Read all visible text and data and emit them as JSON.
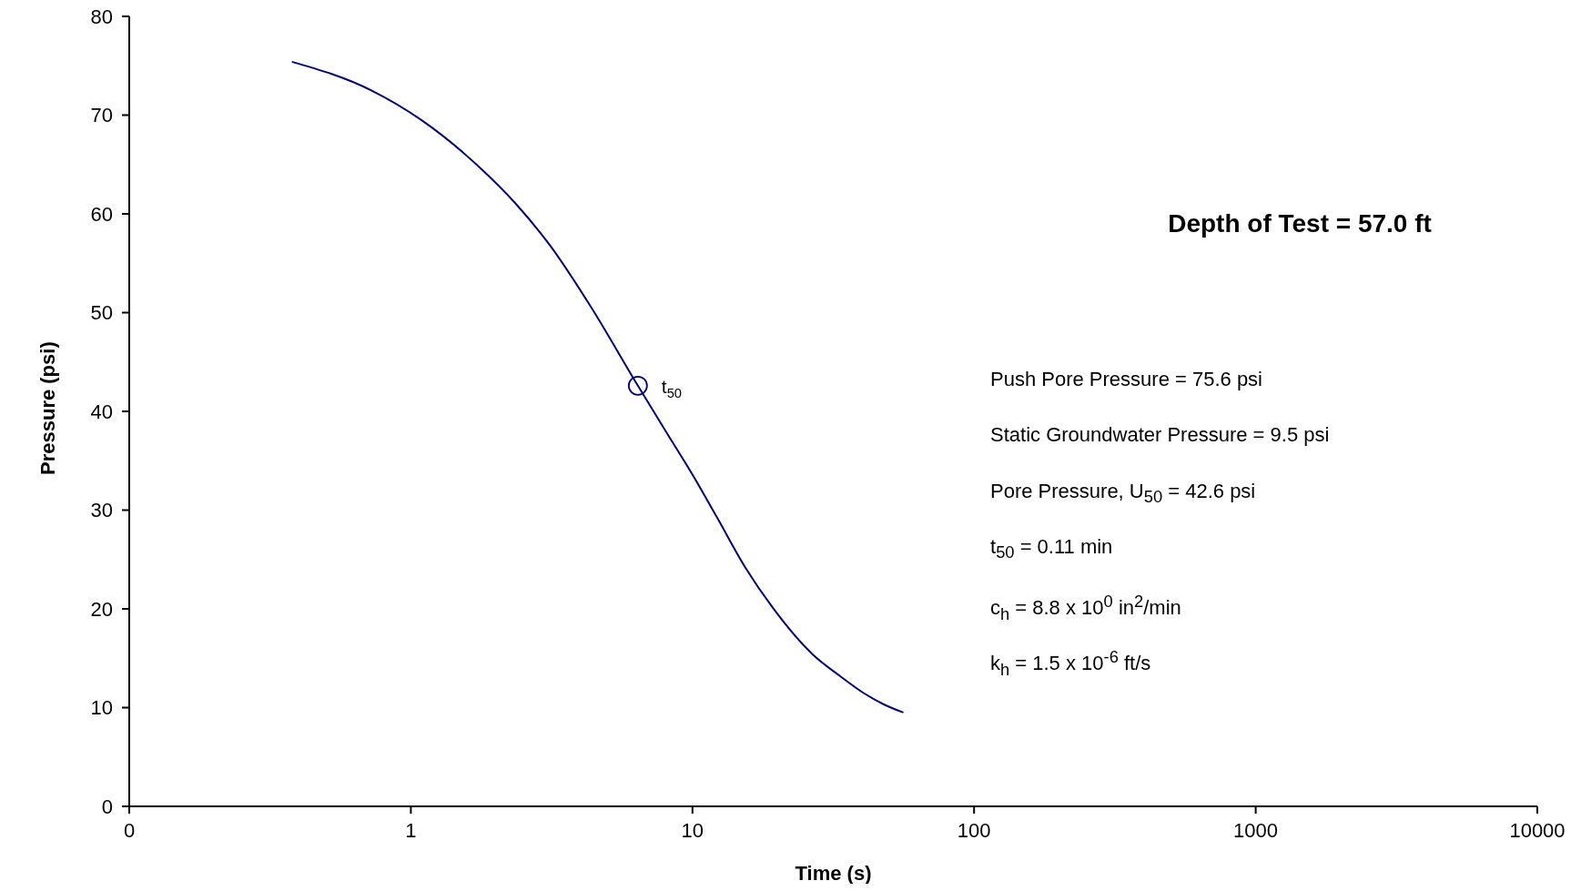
{
  "chart_data": {
    "type": "line",
    "title": "Depth of Test = 57.0 ft",
    "xlabel": "Time (s)",
    "ylabel": "Pressure (psi)",
    "log": "x",
    "grid": false,
    "legend": false,
    "xlim": [
      0.1,
      10000
    ],
    "xticks": [
      {
        "value": 0.1,
        "label": "0"
      },
      1,
      10,
      100,
      1000,
      10000
    ],
    "ylim": [
      0,
      80
    ],
    "yticks": [
      0,
      10,
      20,
      30,
      40,
      50,
      60,
      70,
      80
    ],
    "series": [
      {
        "color": "#000080",
        "marker": "none",
        "x": [
          0.378,
          0.724,
          1.09,
          1.71,
          2.38,
          3.12,
          4.31,
          6.4,
          8.07,
          10,
          12.2,
          15.4,
          19.3,
          26.7,
          33.4,
          40.4,
          48,
          56.1
        ],
        "values": [
          75.4,
          72.5,
          69.5,
          65,
          60.9,
          56.8,
          50.8,
          42.6,
          37.9,
          33.6,
          29.3,
          24.2,
          20.1,
          15.4,
          13.2,
          11.5,
          10.3,
          9.5
        ]
      },
      {
        "type": "scatter",
        "color": "#000080",
        "marker": "circle",
        "x": [
          6.4
        ],
        "values": [
          42.6
        ]
      }
    ],
    "annotations": [
      {
        "text": "t$_{50}$",
        "x": 6.4,
        "y": 42.6
      },
      "Push Pore Pressure = 75.6 psi",
      "Static Groundwater Pressure = 9.5 psi",
      "Pore Pressure, U$_{50}$ = 42.6 psi",
      "t$_{50}$ = 0.11 min",
      "c$_{h}$ = 8.8 x 10$^{0}$ in$^{2}$/min",
      "k$_{h}$ = 1.5 x 10$^{-6}$ ft/s"
    ]
  }
}
